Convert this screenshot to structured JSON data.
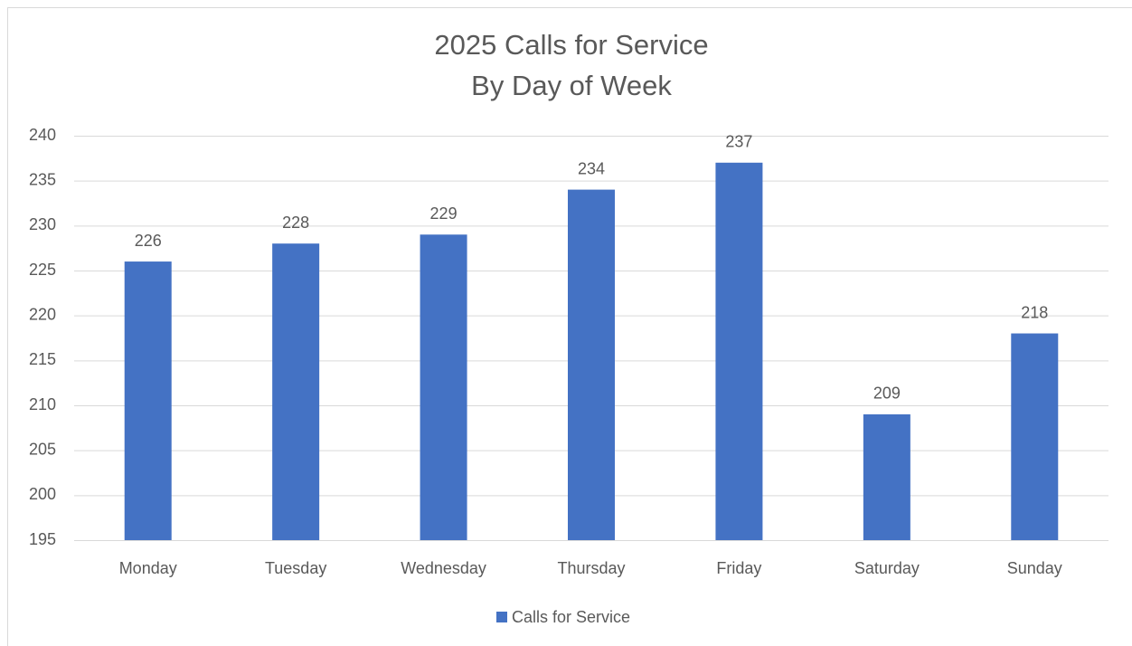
{
  "chart_data": {
    "type": "bar",
    "title": "2025 Calls for Service",
    "subtitle": "By Day of Week",
    "categories": [
      "Monday",
      "Tuesday",
      "Wednesday",
      "Thursday",
      "Friday",
      "Saturday",
      "Sunday"
    ],
    "series": [
      {
        "name": "Calls for Service",
        "color": "#4472c4",
        "values": [
          226,
          228,
          229,
          234,
          237,
          209,
          218
        ]
      }
    ],
    "ylim": [
      195,
      240
    ],
    "yticks": [
      195,
      200,
      205,
      210,
      215,
      220,
      225,
      230,
      235,
      240
    ],
    "grid": true,
    "legend": "bottom",
    "data_labels": true
  }
}
